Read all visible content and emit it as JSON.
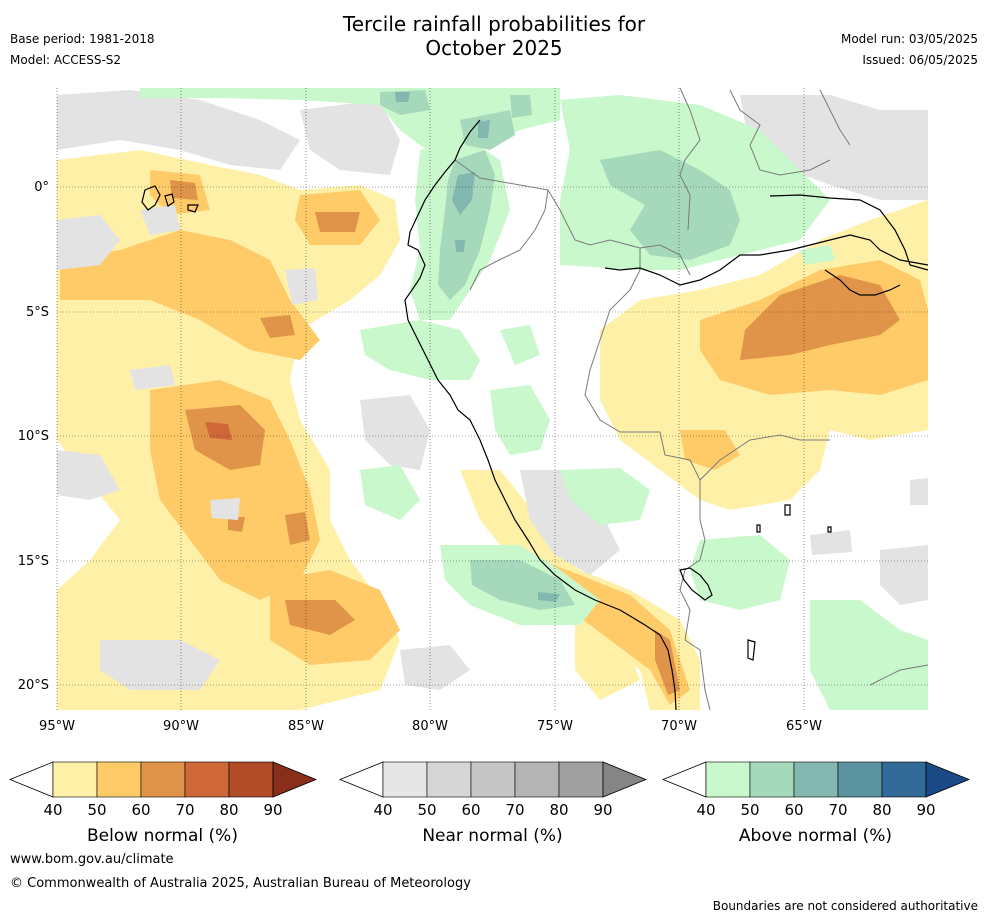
{
  "header": {
    "title_line1": "Tercile rainfall probabilities for",
    "title_line2": "October 2025",
    "base_period": "Base period: 1981-2018",
    "model": "Model: ACCESS-S2",
    "model_run": "Model run: 03/05/2025",
    "issued": "Issued: 06/05/2025"
  },
  "map": {
    "lon_labels": [
      "95°W",
      "90°W",
      "85°W",
      "80°W",
      "75°W",
      "70°W",
      "65°W"
    ],
    "lat_labels": [
      "0°",
      "5°S",
      "10°S",
      "15°S",
      "20°S"
    ]
  },
  "colorbars": [
    {
      "title": "Below normal (%)",
      "ticks": [
        "40",
        "50",
        "60",
        "70",
        "80",
        "90"
      ],
      "colors": [
        "#fff0a8",
        "#fecb68",
        "#e0944a",
        "#cf6838",
        "#b24b28",
        "#8a2e1c"
      ]
    },
    {
      "title": "Near normal (%)",
      "ticks": [
        "40",
        "50",
        "60",
        "70",
        "80",
        "90"
      ],
      "colors": [
        "#e6e6e6",
        "#d6d6d6",
        "#c6c6c6",
        "#b4b4b4",
        "#a0a0a0",
        "#858585"
      ]
    },
    {
      "title": "Above normal (%)",
      "ticks": [
        "40",
        "50",
        "60",
        "70",
        "80",
        "90"
      ],
      "colors": [
        "#c8f8cc",
        "#a6d9bc",
        "#82b8b0",
        "#5c93a0",
        "#326a98",
        "#1c4a86"
      ]
    }
  ],
  "footer": {
    "website": "www.bom.gov.au/climate",
    "copyright": "© Commonwealth of Australia 2025, Australian Bureau of Meteorology",
    "disclaimer": "Boundaries are not considered authoritative"
  },
  "palette": {
    "below": [
      "#fff0a8",
      "#fecb68",
      "#e0944a",
      "#cf6838"
    ],
    "near": [
      "#e3e3e3",
      "#cccccc"
    ],
    "above": [
      "#c8f8cc",
      "#a6d9bc",
      "#82b8b0",
      "#5c93a0"
    ]
  }
}
